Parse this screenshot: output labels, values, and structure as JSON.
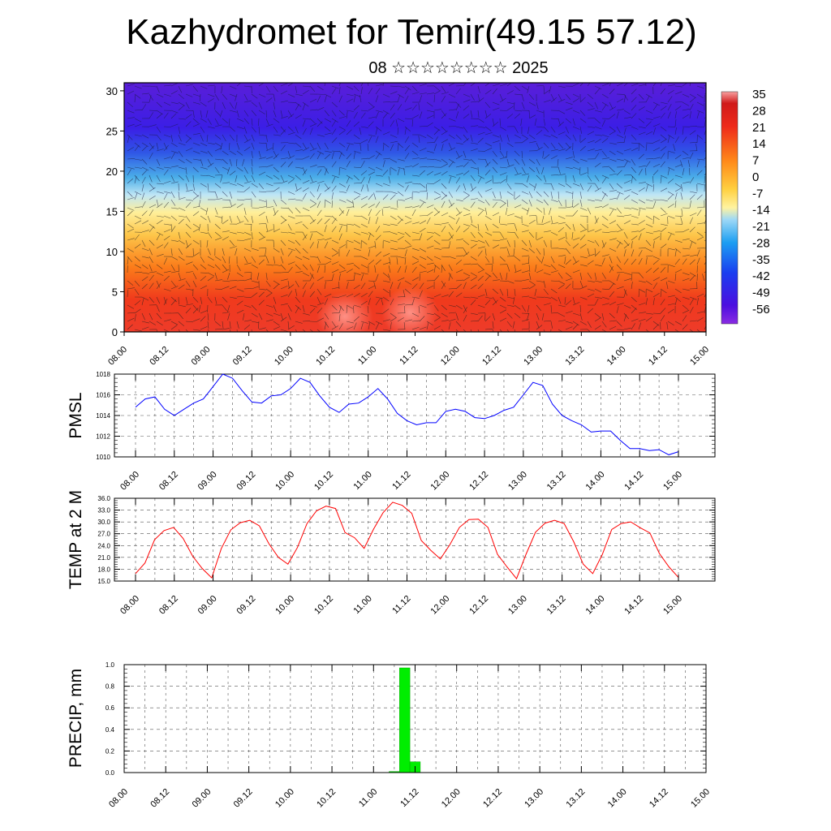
{
  "header": {
    "title": "Kazhydromet for Temir(49.15 57.12)",
    "subtitle": "08 ☆☆☆☆☆☆☆☆ 2025"
  },
  "chart_data": [
    {
      "type": "heatmap",
      "title": "",
      "xlabel": "",
      "ylabel": "",
      "x_tick_labels": [
        "08.00",
        "08.12",
        "09.00",
        "09.12",
        "10.00",
        "10.12",
        "11.00",
        "11.12",
        "12.00",
        "12.12",
        "13.00",
        "13.12",
        "14.00",
        "14.12",
        "15.00"
      ],
      "y_ticks": [
        0,
        5,
        10,
        15,
        20,
        25,
        30
      ],
      "ylim": [
        0,
        31
      ],
      "colorbar": {
        "labels": [
          "35",
          "28",
          "21",
          "14",
          "7",
          "0",
          "-7",
          "-14",
          "-21",
          "-28",
          "-35",
          "-42",
          "-49",
          "-56"
        ],
        "range": [
          -60,
          38
        ]
      },
      "overlay": "wind barbs",
      "description_values": {
        "y_levels": [
          0,
          4,
          8,
          12,
          16,
          19,
          22,
          25,
          28,
          31
        ],
        "temperatures_at_levels": [
          28,
          22,
          15,
          6,
          -8,
          -25,
          -42,
          -55,
          -60,
          -58
        ]
      }
    },
    {
      "type": "line",
      "ylabel": "PMSL",
      "ylim": [
        1010,
        1018
      ],
      "y_ticks": [
        "1010",
        "1012",
        "1014",
        "1016",
        "1018"
      ],
      "x_tick_labels": [
        "08.00",
        "08.12",
        "09.00",
        "09.12",
        "10.00",
        "10.12",
        "11.00",
        "11.12",
        "12.00",
        "12.12",
        "13.00",
        "13.12",
        "14.00",
        "14.12",
        "15.00"
      ],
      "line_color": "#0000ff",
      "values": [
        1014.8,
        1015.6,
        1015.8,
        1014.6,
        1014.0,
        1014.6,
        1015.2,
        1015.6,
        1016.8,
        1018.0,
        1017.6,
        1016.4,
        1015.3,
        1015.2,
        1015.9,
        1016.0,
        1016.6,
        1017.6,
        1017.2,
        1015.9,
        1014.8,
        1014.3,
        1015.1,
        1015.2,
        1015.8,
        1016.6,
        1015.6,
        1014.2,
        1013.5,
        1013.1,
        1013.3,
        1013.3,
        1014.4,
        1014.6,
        1014.4,
        1013.8,
        1013.7,
        1014.0,
        1014.5,
        1014.8,
        1016.0,
        1017.2,
        1016.9,
        1015.1,
        1014.0,
        1013.5,
        1013.1,
        1012.4,
        1012.5,
        1012.5,
        1011.6,
        1010.8,
        1010.8,
        1010.6,
        1010.7,
        1010.2,
        1010.5
      ]
    },
    {
      "type": "line",
      "ylabel": "TEMP at 2 M",
      "ylim": [
        15.0,
        36.0
      ],
      "y_ticks": [
        "15.0",
        "18.0",
        "21.0",
        "24.0",
        "27.0",
        "30.0",
        "33.0",
        "36.0"
      ],
      "x_tick_labels": [
        "08.00",
        "08.12",
        "09.00",
        "09.12",
        "10.00",
        "10.12",
        "11.00",
        "11.12",
        "12.00",
        "12.12",
        "13.00",
        "13.12",
        "14.00",
        "14.12",
        "15.00"
      ],
      "line_color": "#ff0000",
      "values": [
        16.9,
        19.6,
        25.5,
        27.8,
        28.6,
        25.8,
        21.3,
        18.2,
        15.8,
        23.2,
        28.0,
        29.8,
        30.4,
        29.0,
        24.5,
        21.0,
        19.3,
        23.5,
        29.6,
        32.8,
        34.0,
        33.4,
        27.3,
        26.0,
        23.3,
        28.2,
        32.4,
        35.0,
        34.2,
        32.2,
        25.3,
        22.8,
        20.6,
        24.2,
        28.6,
        30.6,
        30.7,
        28.6,
        21.8,
        18.6,
        15.6,
        21.8,
        27.4,
        29.7,
        30.4,
        29.6,
        25.0,
        19.3,
        16.9,
        21.7,
        28.1,
        29.6,
        30.0,
        28.5,
        27.2,
        22.0,
        18.6,
        15.9
      ]
    },
    {
      "type": "bar",
      "ylabel": "PRECIP, mm",
      "ylim": [
        0.0,
        1.0
      ],
      "y_ticks": [
        "0.0",
        "0.2",
        "0.4",
        "0.6",
        "0.8",
        "1.0"
      ],
      "x_tick_labels": [
        "08.00",
        "08.12",
        "09.00",
        "09.12",
        "10.00",
        "10.12",
        "11.00",
        "11.12",
        "12.00",
        "12.12",
        "13.00",
        "13.12",
        "14.00",
        "14.12",
        "15.00"
      ],
      "bar_color": "#00ee00",
      "bars": [
        {
          "x_hours": 78,
          "value": 0.01
        },
        {
          "x_hours": 81,
          "value": 0.97
        },
        {
          "x_hours": 84,
          "value": 0.1
        }
      ]
    }
  ]
}
